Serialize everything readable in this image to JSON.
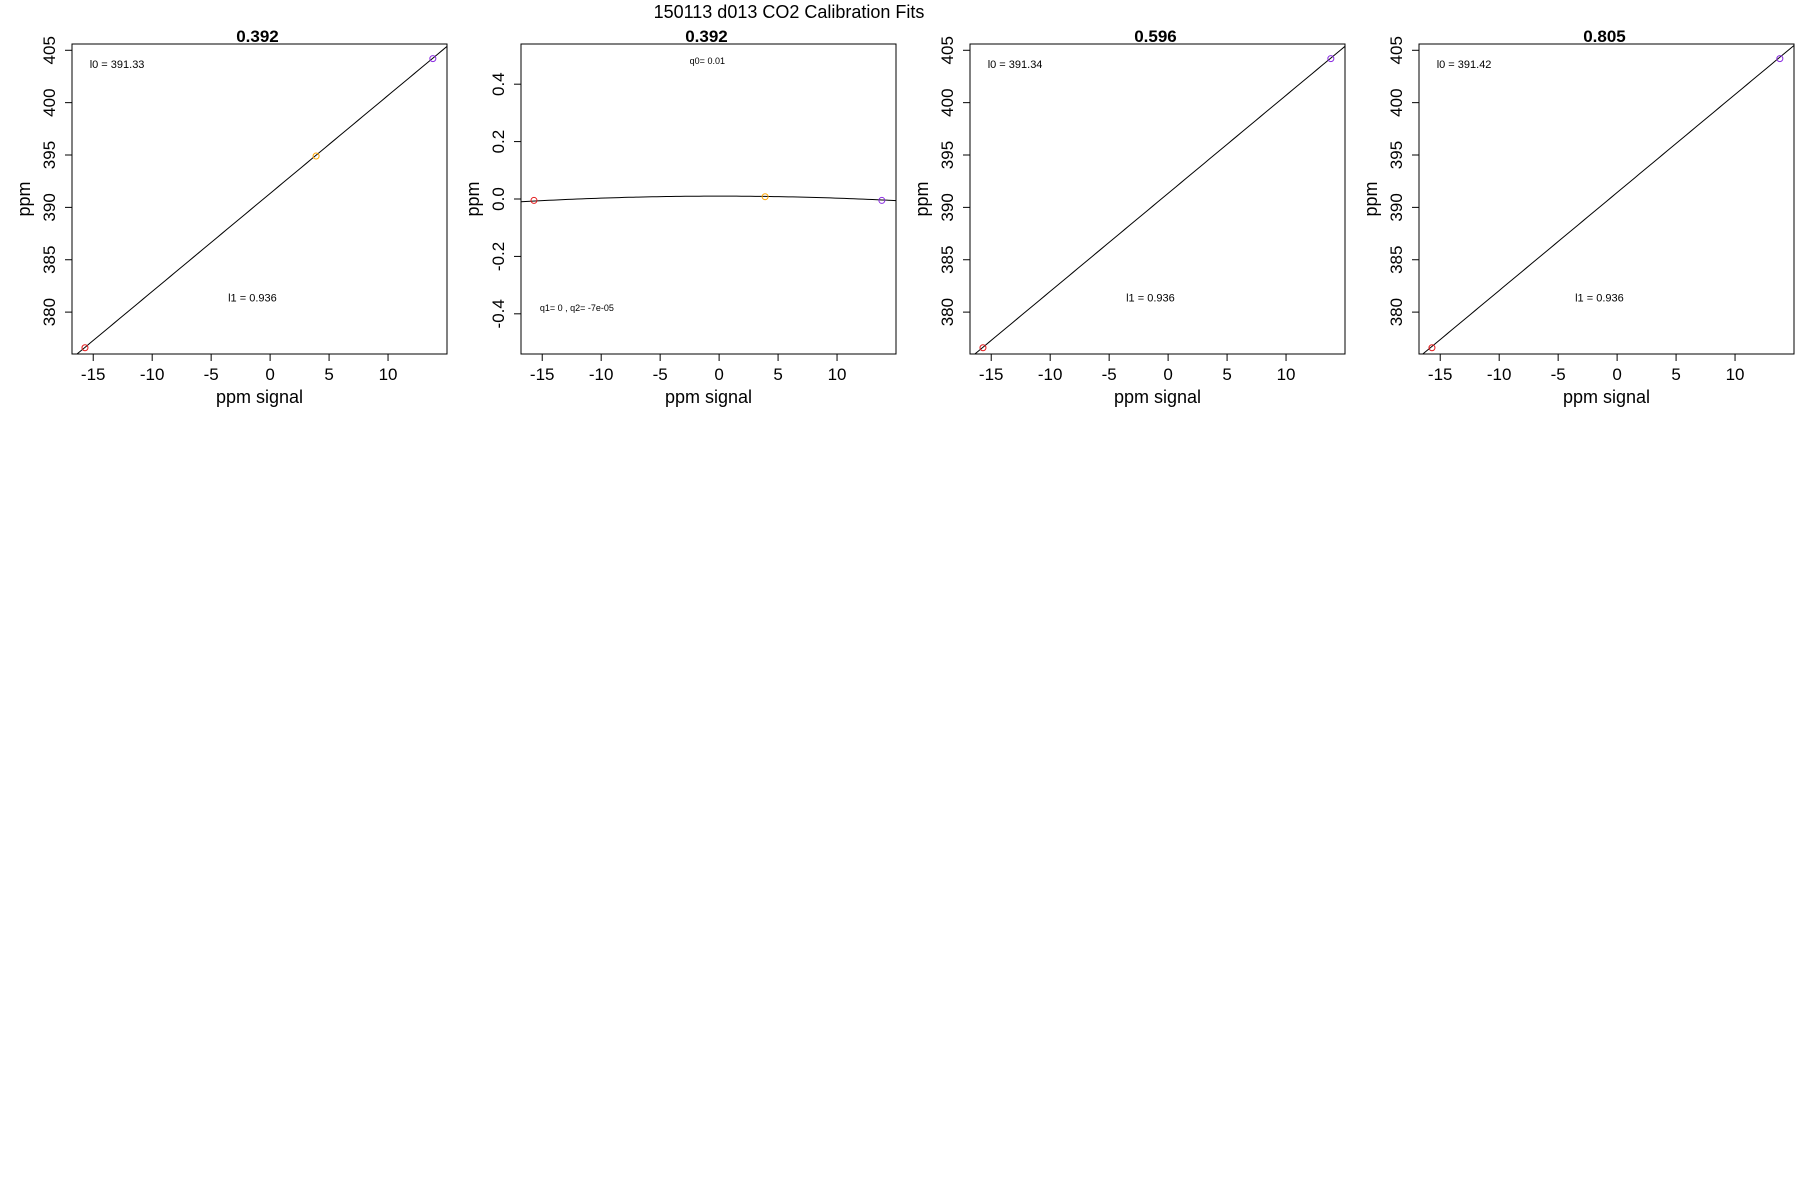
{
  "figure": {
    "main_title": "150113   d013   CO2 Calibration Fits"
  },
  "chart_data": [
    {
      "type": "scatter",
      "title": "0.392",
      "xlabel": "ppm signal",
      "ylabel": "ppm",
      "xlim": [
        -16.8,
        15.0
      ],
      "ylim": [
        376.0,
        405.6
      ],
      "xticks": [
        -15,
        -10,
        -5,
        0,
        5,
        10
      ],
      "yticks": [
        380,
        385,
        390,
        395,
        400,
        405
      ],
      "fit": {
        "kind": "linear",
        "intercept": 391.33,
        "slope": 0.936
      },
      "points": [
        {
          "x": -15.7,
          "y": 376.6,
          "color": "#e31a1c"
        },
        {
          "x": 3.9,
          "y": 394.9,
          "color": "#ffa500"
        },
        {
          "x": 13.8,
          "y": 404.2,
          "color": "#8a2be2"
        }
      ],
      "annotations": [
        {
          "text": "l0 =  391.33",
          "x": -15.3,
          "y": 403.3,
          "anchor": "start",
          "size": "normal"
        },
        {
          "text": "l1 =  0.936",
          "x": -1.5,
          "y": 381.0,
          "anchor": "middle",
          "size": "normal"
        }
      ]
    },
    {
      "type": "scatter",
      "title": "0.392",
      "xlabel": "ppm signal",
      "ylabel": "ppm",
      "xlim": [
        -16.8,
        15.0
      ],
      "ylim": [
        -0.54,
        0.54
      ],
      "xticks": [
        -15,
        -10,
        -5,
        0,
        5,
        10
      ],
      "yticks": [
        -0.4,
        -0.2,
        0.0,
        0.2,
        0.4
      ],
      "ytick_labels": [
        "-0.4",
        "-0.2",
        "0.0",
        "0.2",
        "0.4"
      ],
      "fit": {
        "kind": "quadratic",
        "q0": 0.01,
        "q1": 0,
        "q2": -7e-05
      },
      "points": [
        {
          "x": -15.7,
          "y": -0.005,
          "color": "#e31a1c"
        },
        {
          "x": 3.9,
          "y": 0.008,
          "color": "#ffa500"
        },
        {
          "x": 13.8,
          "y": -0.005,
          "color": "#8a2be2"
        }
      ],
      "annotations": [
        {
          "text": "q0= 0.01",
          "x": -1.0,
          "y": 0.47,
          "anchor": "middle",
          "size": "small"
        },
        {
          "text": "q1= 0  ,  q2= -7e-05",
          "x": -15.2,
          "y": -0.39,
          "anchor": "start",
          "size": "small"
        }
      ]
    },
    {
      "type": "scatter",
      "title": "0.596",
      "xlabel": "ppm signal",
      "ylabel": "ppm",
      "xlim": [
        -16.8,
        15.0
      ],
      "ylim": [
        376.0,
        405.6
      ],
      "xticks": [
        -15,
        -10,
        -5,
        0,
        5,
        10
      ],
      "yticks": [
        380,
        385,
        390,
        395,
        400,
        405
      ],
      "fit": {
        "kind": "linear",
        "intercept": 391.34,
        "slope": 0.936
      },
      "points": [
        {
          "x": -15.7,
          "y": 376.6,
          "color": "#e31a1c"
        },
        {
          "x": 13.8,
          "y": 404.2,
          "color": "#8a2be2"
        }
      ],
      "annotations": [
        {
          "text": "l0 =  391.34",
          "x": -15.3,
          "y": 403.3,
          "anchor": "start",
          "size": "normal"
        },
        {
          "text": "l1 =  0.936",
          "x": -1.5,
          "y": 381.0,
          "anchor": "middle",
          "size": "normal"
        }
      ]
    },
    {
      "type": "scatter",
      "title": "0.805",
      "xlabel": "ppm signal",
      "ylabel": "ppm",
      "xlim": [
        -16.8,
        15.0
      ],
      "ylim": [
        376.0,
        405.6
      ],
      "xticks": [
        -15,
        -10,
        -5,
        0,
        5,
        10
      ],
      "yticks": [
        380,
        385,
        390,
        395,
        400,
        405
      ],
      "fit": {
        "kind": "linear",
        "intercept": 391.42,
        "slope": 0.936
      },
      "points": [
        {
          "x": -15.7,
          "y": 376.6,
          "color": "#e31a1c"
        },
        {
          "x": 13.8,
          "y": 404.2,
          "color": "#8a2be2"
        }
      ],
      "annotations": [
        {
          "text": "l0 =  391.42",
          "x": -15.3,
          "y": 403.3,
          "anchor": "start",
          "size": "normal"
        },
        {
          "text": "l1 =  0.936",
          "x": -1.5,
          "y": 381.0,
          "anchor": "middle",
          "size": "normal"
        }
      ]
    }
  ]
}
